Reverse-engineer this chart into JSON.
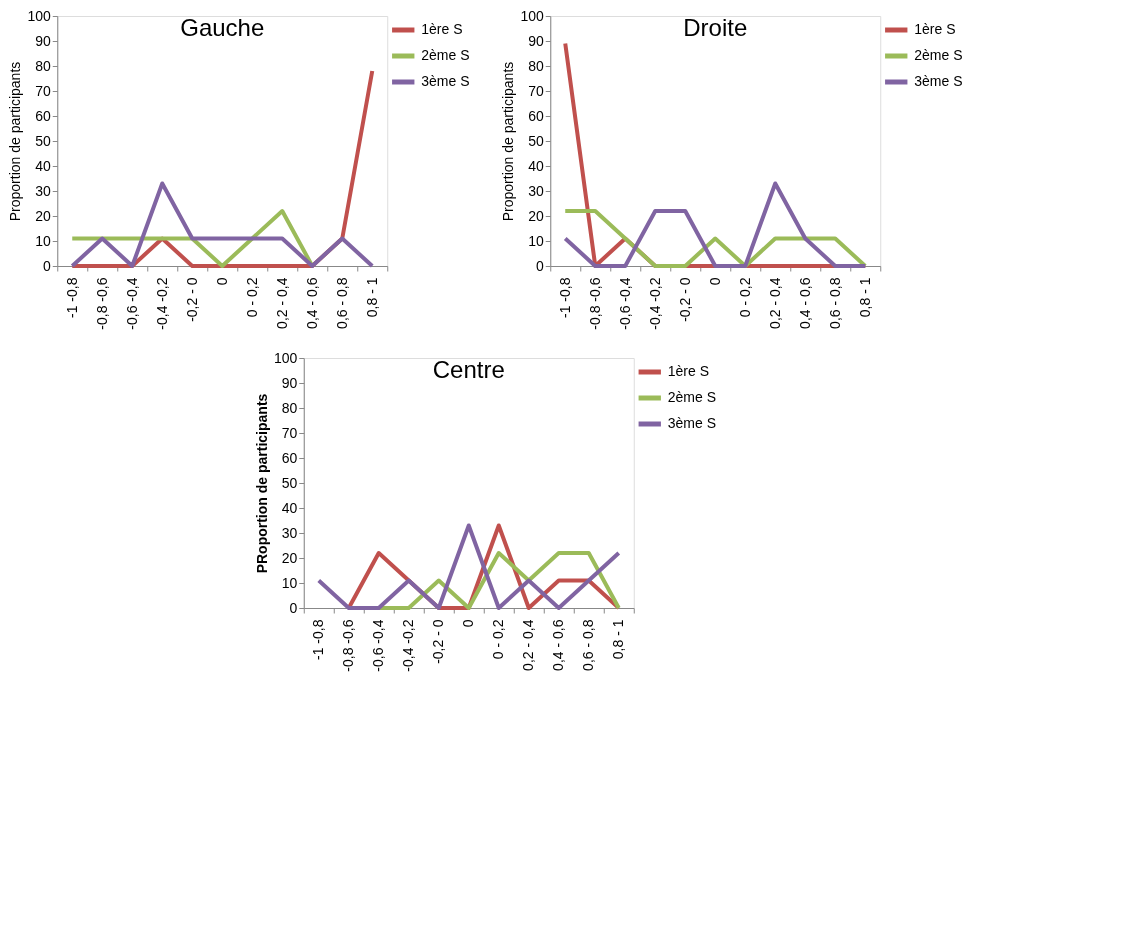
{
  "chart_data": [
    {
      "type": "line",
      "title": "Gauche",
      "ylabel": "Proportion de participants",
      "categories": [
        "-1 -0,8",
        "-0,8 -0,6",
        "-0,6 -0,4",
        "-0,4 -0,2",
        "-0,2 - 0",
        "0",
        "0 - 0,2",
        "0,2 - 0,4",
        "0,4 - 0,6",
        "0,6 - 0,8",
        "0,8 - 1"
      ],
      "ylim": [
        0,
        100
      ],
      "yticks": [
        0,
        10,
        20,
        30,
        40,
        50,
        60,
        70,
        80,
        90,
        100
      ],
      "grid": false,
      "legend": "top right",
      "marker": "none",
      "line_style": "solid",
      "series": [
        {
          "name": "1ère S",
          "color": "#c0504d",
          "values": [
            0,
            0,
            0,
            11,
            0,
            0,
            0,
            0,
            0,
            11,
            78
          ]
        },
        {
          "name": "2ème S",
          "color": "#9bbb59",
          "values": [
            11,
            11,
            11,
            11,
            11,
            0,
            11,
            22,
            0,
            null,
            null
          ]
        },
        {
          "name": "3ème S",
          "color": "#8064a2",
          "values": [
            0,
            11,
            0,
            33,
            11,
            11,
            11,
            11,
            0,
            11,
            0
          ]
        }
      ]
    },
    {
      "type": "line",
      "title": "Droite",
      "ylabel": "Proportion de participants",
      "categories": [
        "-1 -0,8",
        "-0,8 -0,6",
        "-0,6 -0,4",
        "-0,4 -0,2",
        "-0,2 - 0",
        "0",
        "0 - 0,2",
        "0,2 - 0,4",
        "0,4 - 0,6",
        "0,6 - 0,8",
        "0,8 - 1"
      ],
      "ylim": [
        0,
        100
      ],
      "yticks": [
        0,
        10,
        20,
        30,
        40,
        50,
        60,
        70,
        80,
        90,
        100
      ],
      "grid": false,
      "legend": "top right",
      "marker": "none",
      "line_style": "solid",
      "series": [
        {
          "name": "1ère S",
          "color": "#c0504d",
          "values": [
            89,
            0,
            11,
            0,
            0,
            0,
            0,
            0,
            0,
            0,
            0
          ]
        },
        {
          "name": "2ème S",
          "color": "#9bbb59",
          "values": [
            22,
            22,
            11,
            0,
            0,
            11,
            0,
            11,
            11,
            11,
            0
          ]
        },
        {
          "name": "3ème S",
          "color": "#8064a2",
          "values": [
            11,
            0,
            0,
            22,
            22,
            0,
            0,
            33,
            11,
            0,
            0
          ]
        }
      ]
    },
    {
      "type": "line",
      "title": "Centre",
      "ylabel": "PRoportion de participants",
      "categories": [
        "-1 -0,8",
        "-0,8 -0,6",
        "-0,6 -0,4",
        "-0,4 -0,2",
        "-0,2 - 0",
        "0",
        "0 - 0,2",
        "0,2 - 0,4",
        "0,4 - 0,6",
        "0,6 - 0,8",
        "0,8 - 1"
      ],
      "ylim": [
        0,
        100
      ],
      "yticks": [
        0,
        10,
        20,
        30,
        40,
        50,
        60,
        70,
        80,
        90,
        100
      ],
      "grid": false,
      "legend": "top right",
      "marker": "none",
      "line_style": "solid",
      "series": [
        {
          "name": "1ère S",
          "color": "#c0504d",
          "values": [
            null,
            0,
            22,
            11,
            0,
            0,
            33,
            0,
            11,
            11,
            0
          ]
        },
        {
          "name": "2ème S",
          "color": "#9bbb59",
          "values": [
            null,
            null,
            0,
            0,
            11,
            0,
            22,
            11,
            22,
            22,
            0
          ]
        },
        {
          "name": "3ème S",
          "color": "#8064a2",
          "values": [
            11,
            0,
            0,
            11,
            0,
            33,
            0,
            11,
            0,
            11,
            22
          ]
        }
      ]
    }
  ]
}
